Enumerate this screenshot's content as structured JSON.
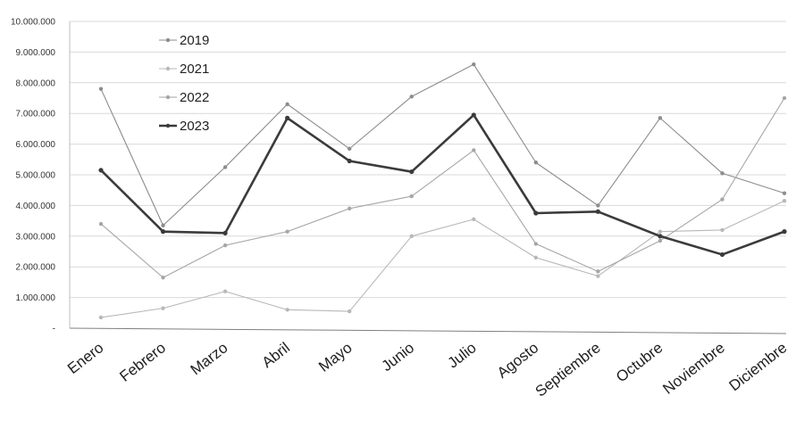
{
  "chart_data": {
    "type": "line",
    "title": "",
    "xlabel": "",
    "ylabel": "",
    "ylim": [
      0,
      10000000
    ],
    "grid": true,
    "legend_position": "top-left",
    "yticks": [
      {
        "value": 0,
        "label": "-"
      },
      {
        "value": 1000000,
        "label": "1.000.000"
      },
      {
        "value": 2000000,
        "label": "2.000.000"
      },
      {
        "value": 3000000,
        "label": "3.000.000"
      },
      {
        "value": 4000000,
        "label": "4.000.000"
      },
      {
        "value": 5000000,
        "label": "5.000.000"
      },
      {
        "value": 6000000,
        "label": "6.000.000"
      },
      {
        "value": 7000000,
        "label": "7.000.000"
      },
      {
        "value": 8000000,
        "label": "8.000.000"
      },
      {
        "value": 9000000,
        "label": "9.000.000"
      },
      {
        "value": 10000000,
        "label": "10.000.000"
      }
    ],
    "categories": [
      "Enero",
      "Febrero",
      "Marzo",
      "Abril",
      "Mayo",
      "Junio",
      "Julio",
      "Agosto",
      "Septiembre",
      "Octubre",
      "Noviembre",
      "Diciembre"
    ],
    "series": [
      {
        "name": "2019",
        "color": "#8c8c8c",
        "values": [
          7800000,
          3350000,
          5250000,
          7300000,
          5850000,
          7550000,
          8600000,
          5400000,
          4000000,
          6850000,
          5050000,
          4400000
        ]
      },
      {
        "name": "2021",
        "color": "#b8b8b8",
        "values": [
          350000,
          650000,
          1200000,
          600000,
          550000,
          3000000,
          3550000,
          2300000,
          1700000,
          3150000,
          3200000,
          4150000
        ]
      },
      {
        "name": "2022",
        "color": "#a6a6a6",
        "values": [
          3400000,
          1650000,
          2700000,
          3150000,
          3900000,
          4300000,
          5800000,
          2750000,
          1850000,
          2850000,
          4200000,
          7500000
        ]
      },
      {
        "name": "2023",
        "color": "#3b3b3b",
        "values": [
          5150000,
          3150000,
          3100000,
          6850000,
          5450000,
          5100000,
          6950000,
          3750000,
          3800000,
          3000000,
          2400000,
          3150000
        ]
      }
    ]
  }
}
